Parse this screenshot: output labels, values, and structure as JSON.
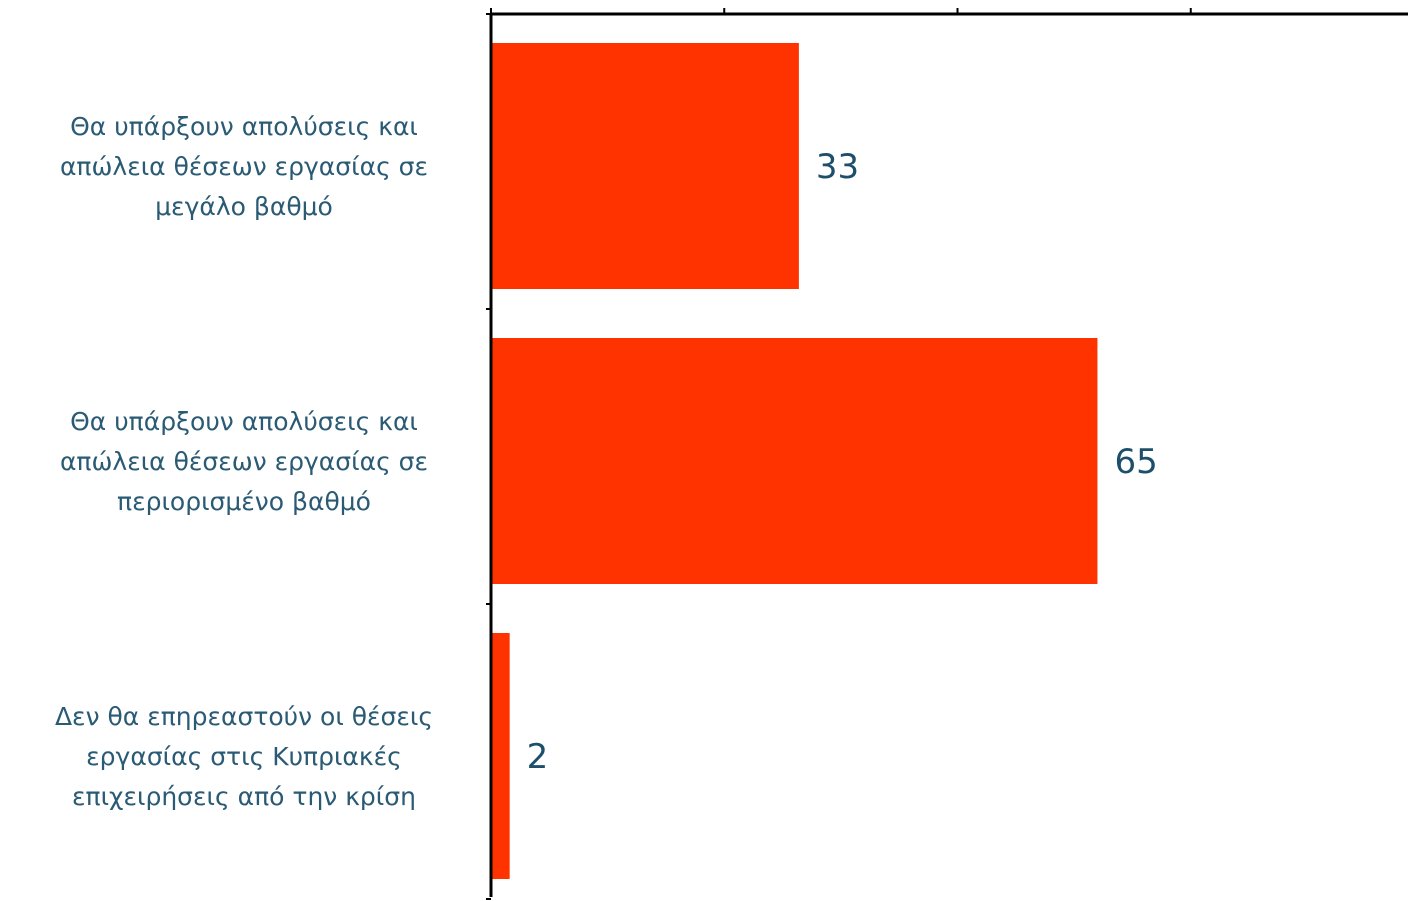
{
  "chart_data": {
    "type": "bar",
    "orientation": "horizontal",
    "categories": [
      [
        "Θα υπάρξουν απολύσεις και",
        "απώλεια θέσεων εργασίας σε",
        "μεγάλο βαθμό"
      ],
      [
        "Θα υπάρξουν απολύσεις και",
        "απώλεια θέσεων εργασίας σε",
        "περιορισμένο βαθμό"
      ],
      [
        "Δεν θα επηρεαστούν οι θέσεις",
        "εργασίας στις Κυπριακές",
        "επιχειρήσεις από την κρίση"
      ]
    ],
    "values": [
      33,
      65,
      2
    ],
    "data_labels": [
      "33",
      "65",
      "2"
    ],
    "xlim": [
      0,
      100
    ],
    "x_axis_position": "top",
    "grid": false,
    "legend": "none",
    "colors": {
      "bar": "#ff3300",
      "label_text": "#2a5a74",
      "value_text": "#1d4f6b",
      "axis": "#000000"
    }
  }
}
